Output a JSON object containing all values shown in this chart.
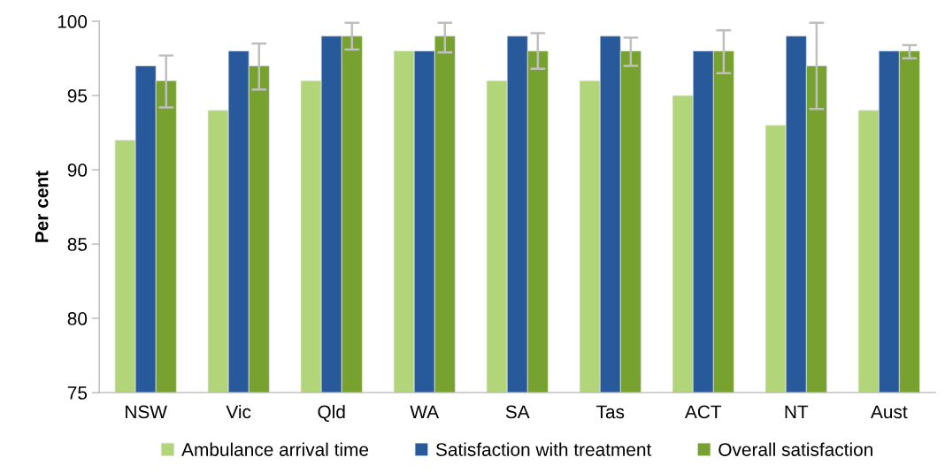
{
  "chart_data": {
    "type": "bar",
    "ylabel": "Per cent",
    "categories": [
      "NSW",
      "Vic",
      "Qld",
      "WA",
      "SA",
      "Tas",
      "ACT",
      "NT",
      "Aust"
    ],
    "series": [
      {
        "name": "Ambulance arrival time",
        "color": "#b3d57a",
        "values": [
          92,
          94,
          96,
          98,
          96,
          96,
          95,
          93,
          94
        ]
      },
      {
        "name": "Satisfaction with treatment",
        "color": "#285a9b",
        "values": [
          97,
          98,
          99,
          98,
          99,
          99,
          98,
          99,
          98
        ]
      },
      {
        "name": "Overall satisfaction",
        "color": "#78a22f",
        "values": [
          96,
          97,
          99,
          99,
          98,
          98,
          98,
          97,
          98
        ],
        "errors": [
          [
            94.2,
            97.7
          ],
          [
            95.4,
            98.5
          ],
          [
            98.1,
            99.9
          ],
          [
            97.9,
            99.9
          ],
          [
            96.8,
            99.2
          ],
          [
            97.0,
            98.9
          ],
          [
            96.5,
            99.4
          ],
          [
            94.1,
            99.9
          ],
          [
            97.5,
            98.4
          ]
        ]
      }
    ],
    "ylim": [
      75,
      100
    ],
    "yticks": [
      75,
      80,
      85,
      90,
      95,
      100
    ],
    "grid": false,
    "legend": "bottom"
  }
}
